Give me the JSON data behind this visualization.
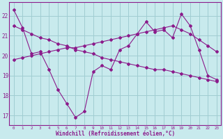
{
  "background_color": "#c8eaed",
  "grid_color": "#a0cdd2",
  "line_color": "#8b1b8b",
  "xlabel": "Windchill (Refroidissement éolien,°C)",
  "ylim": [
    16.5,
    22.7
  ],
  "xlim": [
    -0.5,
    23.5
  ],
  "yticks": [
    17,
    18,
    19,
    20,
    21,
    22
  ],
  "xticks": [
    0,
    1,
    2,
    3,
    4,
    5,
    6,
    7,
    8,
    9,
    10,
    11,
    12,
    13,
    14,
    15,
    16,
    17,
    18,
    19,
    20,
    21,
    22,
    23
  ],
  "series": [
    {
      "x": [
        0,
        1,
        2,
        3,
        4,
        5,
        6,
        7,
        8,
        9,
        10,
        11,
        12,
        13,
        14,
        15,
        16,
        17,
        18,
        19,
        20,
        21,
        22,
        23
      ],
      "y": [
        22.3,
        21.4,
        20.1,
        20.2,
        19.3,
        18.3,
        17.6,
        16.9,
        17.2,
        19.2,
        19.5,
        19.3,
        20.3,
        20.5,
        21.1,
        21.7,
        21.2,
        21.3,
        20.9,
        22.1,
        21.5,
        20.3,
        19.0,
        18.8
      ]
    },
    {
      "x": [
        0,
        1,
        2,
        3,
        4,
        5,
        6,
        7,
        8,
        9,
        10,
        11,
        12,
        13,
        14,
        15,
        16,
        17,
        18,
        19,
        20,
        21,
        22,
        23
      ],
      "y": [
        19.8,
        19.9,
        20.0,
        20.1,
        20.2,
        20.3,
        20.4,
        20.4,
        20.5,
        20.6,
        20.7,
        20.8,
        20.9,
        21.0,
        21.1,
        21.2,
        21.3,
        21.4,
        21.5,
        21.3,
        21.1,
        20.8,
        20.5,
        20.2
      ]
    },
    {
      "x": [
        0,
        1,
        2,
        3,
        4,
        5,
        6,
        7,
        8,
        9,
        10,
        11,
        12,
        13,
        14,
        15,
        16,
        17,
        18,
        19,
        20,
        21,
        22,
        23
      ],
      "y": [
        21.5,
        21.3,
        21.1,
        20.9,
        20.8,
        20.6,
        20.5,
        20.3,
        20.2,
        20.1,
        19.9,
        19.8,
        19.7,
        19.6,
        19.5,
        19.4,
        19.3,
        19.3,
        19.2,
        19.1,
        19.0,
        18.9,
        18.8,
        18.7
      ]
    }
  ]
}
